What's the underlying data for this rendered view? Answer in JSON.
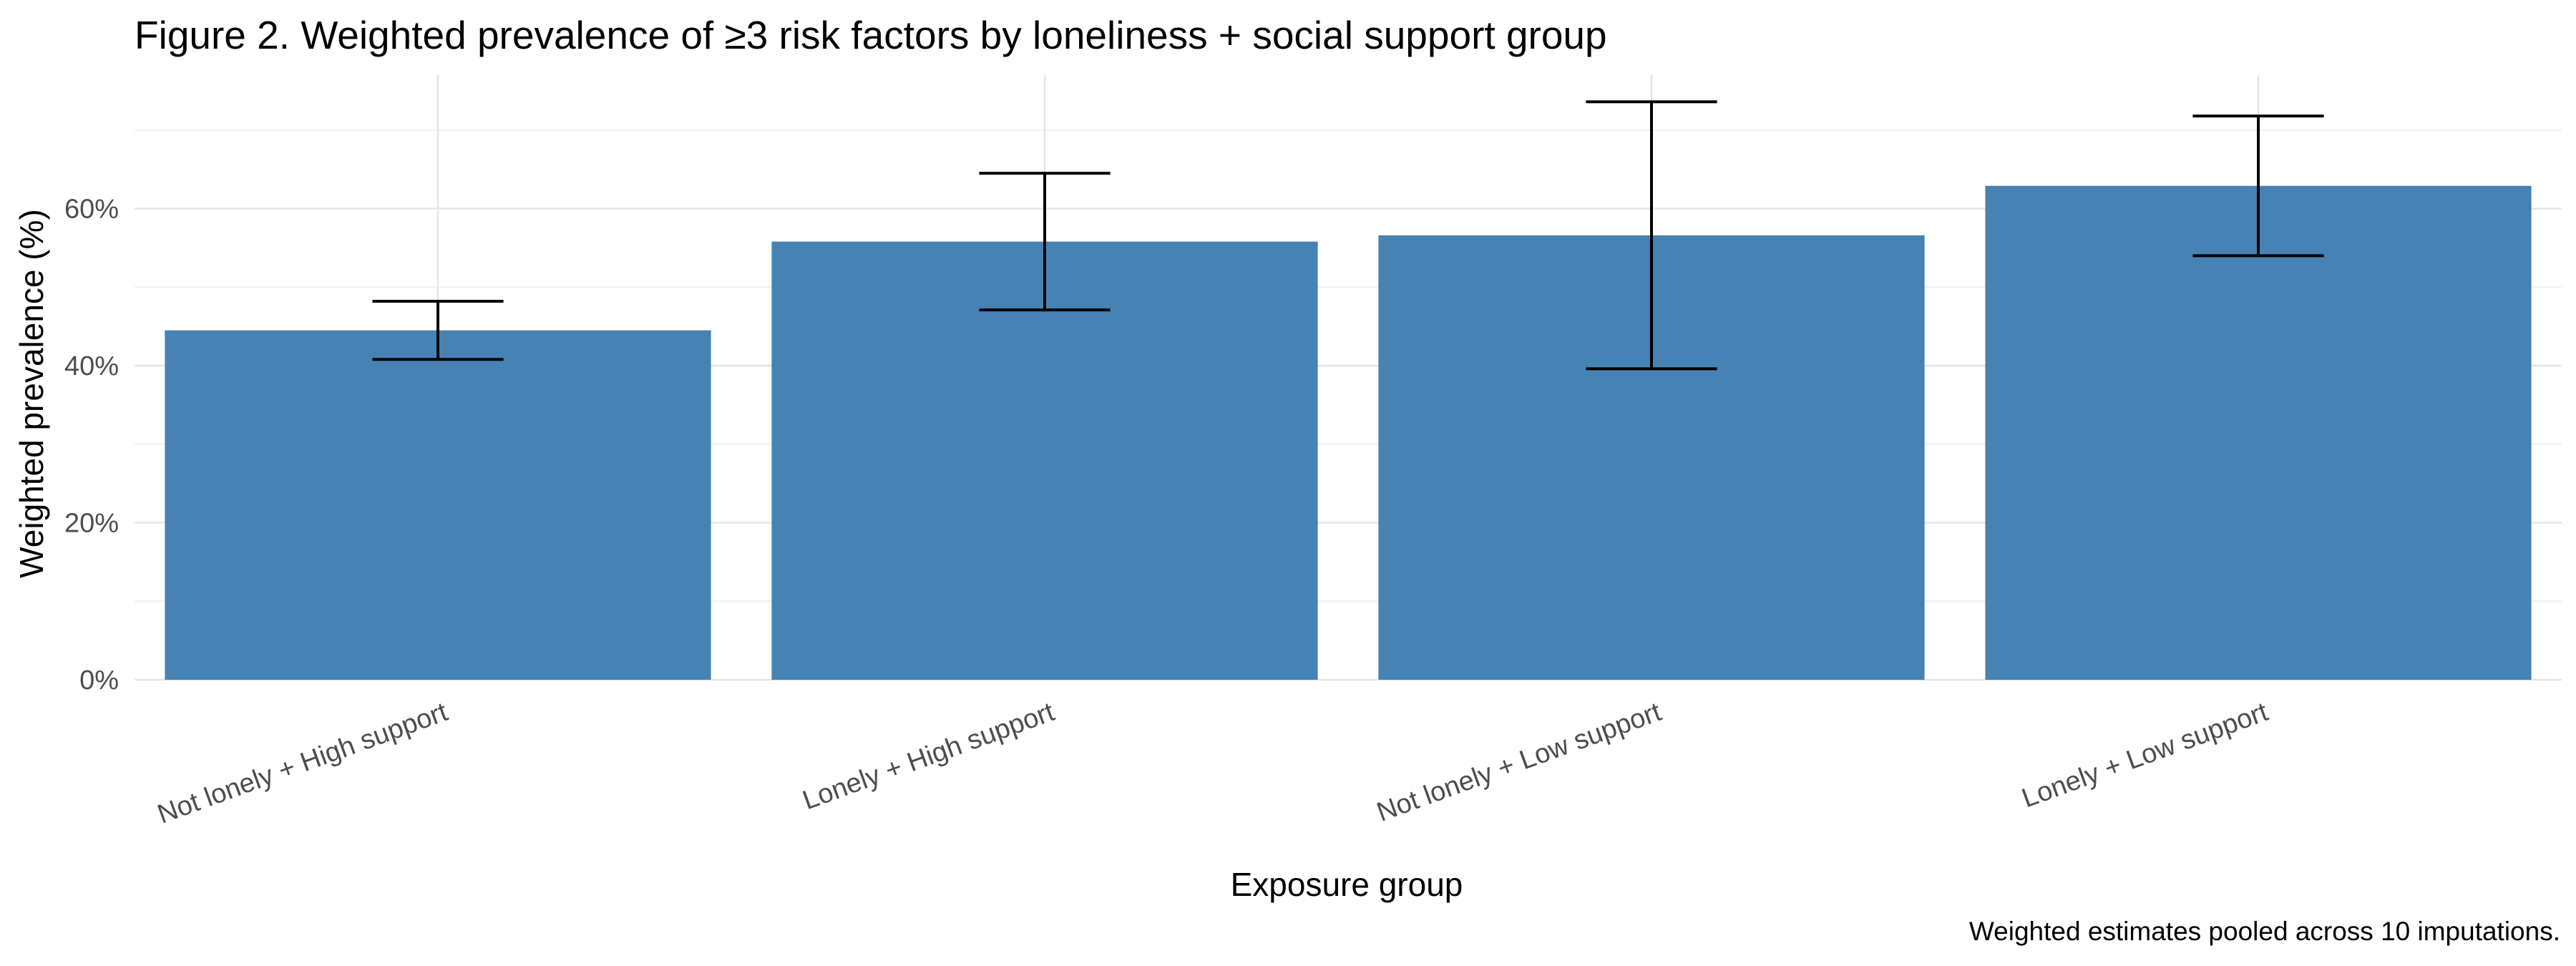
{
  "title": "Figure 2. Weighted prevalence of ≥3 risk factors by loneliness + social support group",
  "caption": "Weighted estimates pooled across 10 imputations.",
  "chart_data": {
    "type": "bar",
    "title": "Figure 2. Weighted prevalence of ≥3 risk factors by loneliness + social support group",
    "xlabel": "Exposure group",
    "ylabel": "Weighted prevalence (%)",
    "ylim": [
      0,
      77
    ],
    "yticks": [
      0,
      20,
      40,
      60
    ],
    "ytick_labels": [
      "0%",
      "20%",
      "40%",
      "60%"
    ],
    "grid": true,
    "categories": [
      "Not lonely + High support",
      "Lonely + High support",
      "Not lonely + Low support",
      "Lonely + Low support"
    ],
    "values": [
      44.5,
      55.8,
      56.6,
      62.9
    ],
    "error_lower": [
      40.8,
      47.1,
      39.6,
      54.0
    ],
    "error_upper": [
      48.2,
      64.5,
      73.6,
      71.8
    ],
    "bar_color": "#4682b4"
  }
}
